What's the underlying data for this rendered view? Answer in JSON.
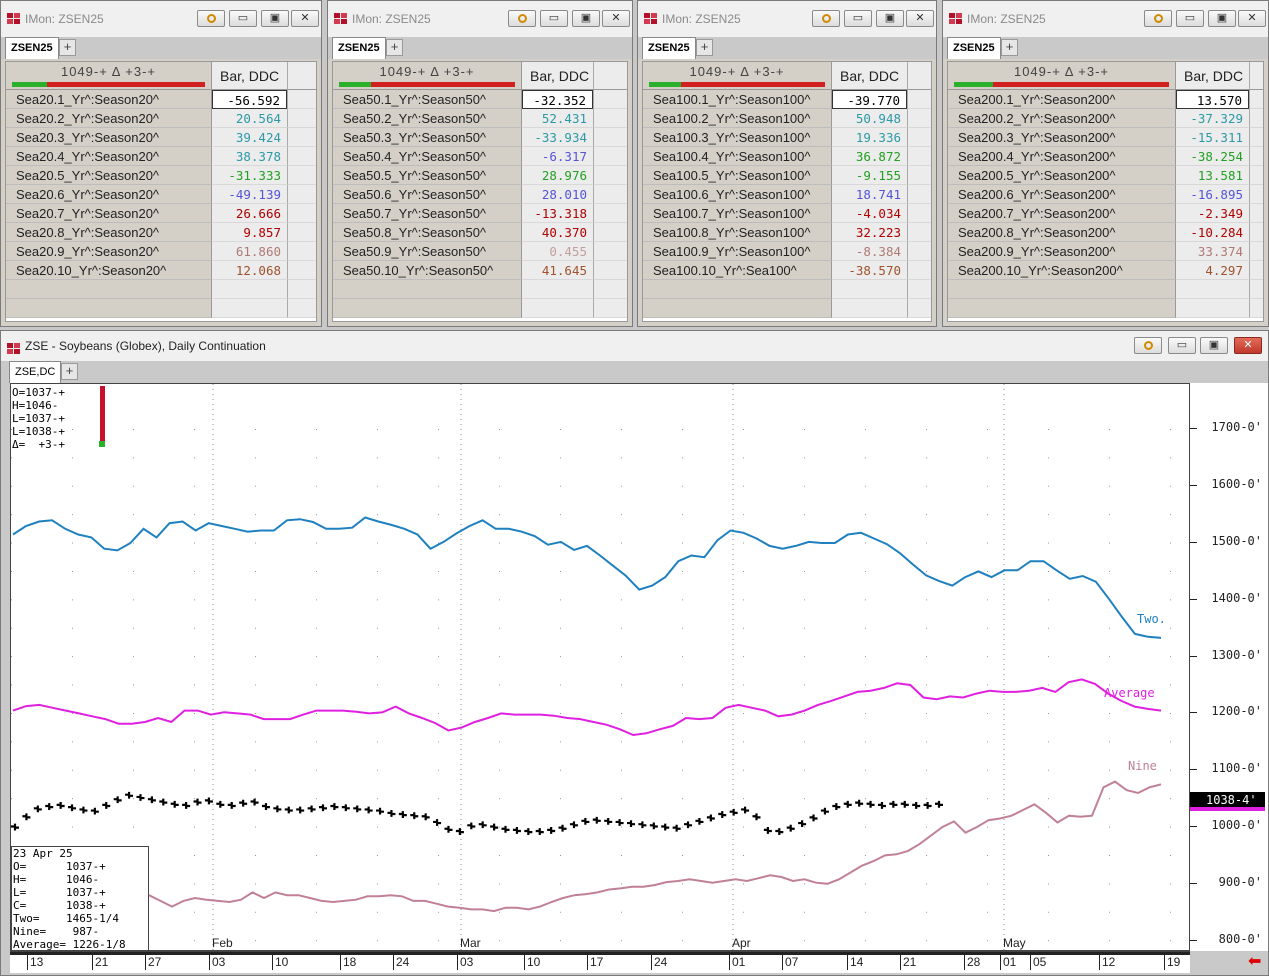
{
  "monitors": [
    {
      "title": "IMon: ZSEN25",
      "tab": "ZSEN25",
      "header": "1049-+    Δ +3-+",
      "colhead": "Bar, DDC",
      "rows": [
        {
          "name": "Sea20.1_Yr^:Season20^",
          "value": "-56.592",
          "color": "#000000"
        },
        {
          "name": "Sea20.2_Yr^:Season20^",
          "value": "20.564",
          "color": "#2c9aa6"
        },
        {
          "name": "Sea20.3_Yr^:Season20^",
          "value": "39.424",
          "color": "#2c9aa6"
        },
        {
          "name": "Sea20.4_Yr^:Season20^",
          "value": "38.378",
          "color": "#2c9aa6"
        },
        {
          "name": "Sea20.5_Yr^:Season20^",
          "value": "-31.333",
          "color": "#22a022"
        },
        {
          "name": "Sea20.6_Yr^:Season20^",
          "value": "-49.139",
          "color": "#5454d8"
        },
        {
          "name": "Sea20.7_Yr^:Season20^",
          "value": "26.666",
          "color": "#b00000"
        },
        {
          "name": "Sea20.8_Yr^:Season20^",
          "value": "9.857",
          "color": "#b00000"
        },
        {
          "name": "Sea20.9_Yr^:Season20^",
          "value": "61.860",
          "color": "#b07a74"
        },
        {
          "name": "Sea20.10_Yr^:Season20^",
          "value": "12.068",
          "color": "#a0522d"
        }
      ]
    },
    {
      "title": "IMon: ZSEN25",
      "tab": "ZSEN25",
      "header": "1049-+    Δ +3-+",
      "colhead": "Bar, DDC",
      "rows": [
        {
          "name": "Sea50.1_Yr^:Season50^",
          "value": "-32.352",
          "color": "#000000"
        },
        {
          "name": "Sea50.2_Yr^:Season50^",
          "value": "52.431",
          "color": "#2c9aa6"
        },
        {
          "name": "Sea50.3_Yr^:Season50^",
          "value": "-33.934",
          "color": "#2c9aa6"
        },
        {
          "name": "Sea50.4_Yr^:Season50^",
          "value": "-6.317",
          "color": "#5454d8"
        },
        {
          "name": "Sea50.5_Yr^:Season50^",
          "value": "28.976",
          "color": "#22a022"
        },
        {
          "name": "Sea50.6_Yr^:Season50^",
          "value": "28.010",
          "color": "#5454d8"
        },
        {
          "name": "Sea50.7_Yr^:Season50^",
          "value": "-13.318",
          "color": "#b00000"
        },
        {
          "name": "Sea50.8_Yr^:Season50^",
          "value": "40.370",
          "color": "#b00000"
        },
        {
          "name": "Sea50.9_Yr^:Season50^",
          "value": "0.455",
          "color": "#c0a09a"
        },
        {
          "name": "Sea50.10_Yr^:Season50^",
          "value": "41.645",
          "color": "#a0522d"
        }
      ]
    },
    {
      "title": "IMon: ZSEN25",
      "tab": "ZSEN25",
      "header": "1049-+    Δ +3-+",
      "colhead": "Bar, DDC",
      "rows": [
        {
          "name": "Sea100.1_Yr^:Season100^",
          "value": "-39.770",
          "color": "#000000"
        },
        {
          "name": "Sea100.2_Yr^:Season100^",
          "value": "50.948",
          "color": "#2c9aa6"
        },
        {
          "name": "Sea100.3_Yr^:Season100^",
          "value": "19.336",
          "color": "#2c9aa6"
        },
        {
          "name": "Sea100.4_Yr^:Season100^",
          "value": "36.872",
          "color": "#22a022"
        },
        {
          "name": "Sea100.5_Yr^:Season100^",
          "value": "-9.155",
          "color": "#22a022"
        },
        {
          "name": "Sea100.6_Yr^:Season100^",
          "value": "18.741",
          "color": "#5454d8"
        },
        {
          "name": "Sea100.7_Yr^:Season100^",
          "value": "-4.034",
          "color": "#b00000"
        },
        {
          "name": "Sea100.8_Yr^:Season100^",
          "value": "32.223",
          "color": "#b00000"
        },
        {
          "name": "Sea100.9_Yr^:Season100^",
          "value": "-8.384",
          "color": "#b07a74"
        },
        {
          "name": "Sea100.10_Yr^:Sea100^",
          "value": "-38.570",
          "color": "#a0522d"
        }
      ]
    },
    {
      "title": "IMon: ZSEN25",
      "tab": "ZSEN25",
      "header": "1049-+    Δ +3-+",
      "colhead": "Bar, DDC",
      "rows": [
        {
          "name": "Sea200.1_Yr^:Season200^",
          "value": "13.570",
          "color": "#000000"
        },
        {
          "name": "Sea200.2_Yr^:Season200^",
          "value": "-37.329",
          "color": "#2c9aa6"
        },
        {
          "name": "Sea200.3_Yr^:Season200^",
          "value": "-15.311",
          "color": "#2c9aa6"
        },
        {
          "name": "Sea200.4_Yr^:Season200^",
          "value": "-38.254",
          "color": "#22a022"
        },
        {
          "name": "Sea200.5_Yr^:Season200^",
          "value": "13.581",
          "color": "#22a022"
        },
        {
          "name": "Sea200.6_Yr^:Season200^",
          "value": "-16.895",
          "color": "#5454d8"
        },
        {
          "name": "Sea200.7_Yr^:Season200^",
          "value": "-2.349",
          "color": "#b00000"
        },
        {
          "name": "Sea200.8_Yr^:Season200^",
          "value": "-10.284",
          "color": "#b00000"
        },
        {
          "name": "Sea200.9_Yr^:Season200^",
          "value": "33.374",
          "color": "#b07a74"
        },
        {
          "name": "Sea200.10_Yr^:Season200^",
          "value": "4.297",
          "color": "#a0522d"
        }
      ]
    }
  ],
  "chart": {
    "title": "ZSE - Soybeans (Globex), Daily Continuation",
    "tab": "ZSE,DC",
    "ohlc_readout": "O=1037-+\nH=1046-\nL=1037-+\nL=1038-+\nΔ=  +3-+",
    "info_box": "23 Apr 25\nO=      1037-+\nH=      1046-\nL=      1037-+\nC=      1038-+\nTwo=    1465-1/4\nNine=    987-\nAverage= 1226-1/8",
    "last_price": "1038-4'",
    "y_ticks": [
      "1700-0'",
      "1600-0'",
      "1500-0'",
      "1400-0'",
      "1300-0'",
      "1200-0'",
      "1100-0'",
      "1000-0'",
      "900-0'",
      "800-0'"
    ],
    "x_ticks": [
      "13",
      "21",
      "27",
      "03",
      "10",
      "18",
      "24",
      "03",
      "10",
      "17",
      "24",
      "01",
      "07",
      "14",
      "21",
      "28",
      "01",
      "05",
      "12",
      "19"
    ],
    "months": [
      "Feb",
      "Mar",
      "Apr",
      "May"
    ],
    "series_labels": {
      "two": "Two.",
      "average": "Average",
      "nine": "Nine"
    }
  },
  "chart_data": {
    "type": "line",
    "ylim": [
      780,
      1780
    ],
    "series": [
      {
        "name": "Two",
        "color": "#1f80c0",
        "values": [
          1515,
          1530,
          1538,
          1540,
          1525,
          1515,
          1510,
          1490,
          1487,
          1500,
          1525,
          1510,
          1535,
          1538,
          1522,
          1535,
          1530,
          1525,
          1520,
          1522,
          1522,
          1540,
          1542,
          1537,
          1525,
          1525,
          1527,
          1545,
          1538,
          1532,
          1525,
          1515,
          1490,
          1502,
          1517,
          1530,
          1540,
          1525,
          1525,
          1520,
          1512,
          1497,
          1502,
          1488,
          1495,
          1478,
          1460,
          1442,
          1418,
          1425,
          1440,
          1468,
          1478,
          1475,
          1505,
          1522,
          1518,
          1508,
          1495,
          1490,
          1495,
          1502,
          1500,
          1500,
          1515,
          1518,
          1508,
          1498,
          1482,
          1462,
          1443,
          1433,
          1425,
          1440,
          1450,
          1440,
          1452,
          1452,
          1468,
          1468,
          1452,
          1437,
          1442,
          1432,
          1402,
          1370,
          1340,
          1335,
          1333
        ]
      },
      {
        "name": "Average",
        "color": "#e020e0",
        "values": [
          1205,
          1213,
          1215,
          1210,
          1205,
          1200,
          1195,
          1190,
          1182,
          1182,
          1185,
          1192,
          1185,
          1205,
          1205,
          1198,
          1202,
          1200,
          1198,
          1190,
          1190,
          1190,
          1198,
          1205,
          1205,
          1205,
          1203,
          1200,
          1202,
          1212,
          1200,
          1192,
          1183,
          1170,
          1175,
          1185,
          1192,
          1200,
          1198,
          1198,
          1198,
          1196,
          1192,
          1190,
          1185,
          1180,
          1172,
          1162,
          1165,
          1172,
          1178,
          1192,
          1190,
          1192,
          1210,
          1215,
          1210,
          1205,
          1195,
          1198,
          1205,
          1215,
          1222,
          1230,
          1238,
          1240,
          1245,
          1253,
          1250,
          1228,
          1225,
          1230,
          1228,
          1235,
          1240,
          1238,
          1238,
          1240,
          1245,
          1238,
          1255,
          1260,
          1252,
          1235,
          1222,
          1212,
          1208,
          1205
        ]
      },
      {
        "name": "Nine",
        "color": "#c08098",
        "values": [
          880,
          870,
          860,
          870,
          875,
          872,
          870,
          868,
          872,
          885,
          875,
          885,
          880,
          880,
          875,
          870,
          868,
          870,
          872,
          878,
          878,
          880,
          878,
          870,
          870,
          865,
          860,
          858,
          855,
          855,
          852,
          858,
          858,
          855,
          860,
          868,
          875,
          880,
          882,
          885,
          890,
          892,
          895,
          895,
          898,
          903,
          905,
          908,
          905,
          902,
          905,
          908,
          905,
          910,
          915,
          912,
          905,
          908,
          902,
          900,
          908,
          920,
          932,
          940,
          950,
          952,
          958,
          970,
          985,
          1000,
          1010,
          990,
          1000,
          1012,
          1015,
          1020,
          1030,
          1040,
          1025,
          1008,
          1020,
          1018,
          1020,
          1070,
          1080,
          1065,
          1060,
          1070,
          1075
        ]
      },
      {
        "name": "Price",
        "color": "#000000",
        "values": [
          1000,
          1018,
          1032,
          1036,
          1038,
          1034,
          1030,
          1028,
          1038,
          1048,
          1056,
          1052,
          1048,
          1044,
          1040,
          1038,
          1044,
          1046,
          1040,
          1038,
          1042,
          1044,
          1036,
          1032,
          1030,
          1030,
          1032,
          1034,
          1036,
          1034,
          1032,
          1030,
          1028,
          1024,
          1022,
          1020,
          1018,
          1008,
          996,
          992,
          1002,
          1004,
          1000,
          996,
          994,
          992,
          992,
          994,
          998,
          1004,
          1010,
          1012,
          1010,
          1008,
          1006,
          1004,
          1002,
          1000,
          998,
          1004,
          1010,
          1016,
          1022,
          1026,
          1030,
          1018,
          994,
          992,
          998,
          1006,
          1016,
          1028,
          1036,
          1040,
          1042,
          1040,
          1038,
          1040,
          1040,
          1038,
          1038,
          1040
        ]
      }
    ]
  }
}
